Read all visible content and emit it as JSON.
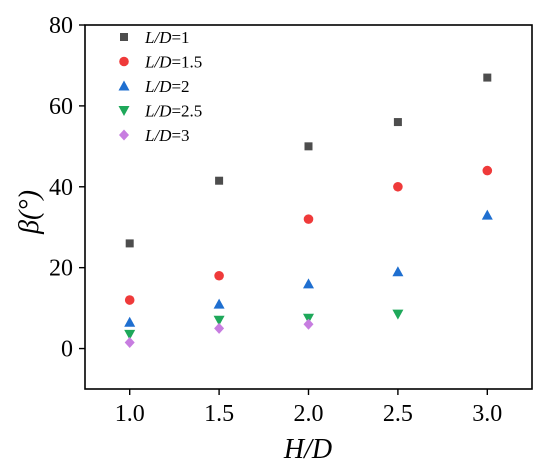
{
  "chart_data": {
    "type": "scatter",
    "xlabel": "H/D",
    "ylabel": "β(°)",
    "xlim": [
      0.75,
      3.25
    ],
    "ylim": [
      -10,
      80
    ],
    "xticks": [
      "1.0",
      "1.5",
      "2.0",
      "2.5",
      "3.0"
    ],
    "yticks": [
      "0",
      "20",
      "40",
      "60",
      "80"
    ],
    "legend_position": "top-left",
    "grid": false,
    "series": [
      {
        "name": "L/D=1",
        "marker": "square",
        "color": "#4d4d4d",
        "x": [
          1.0,
          1.5,
          2.0,
          2.5,
          3.0
        ],
        "y": [
          26,
          41.5,
          50,
          56,
          67
        ]
      },
      {
        "name": "L/D=1.5",
        "marker": "circle",
        "color": "#ef3a3a",
        "x": [
          1.0,
          1.5,
          2.0,
          2.5,
          3.0
        ],
        "y": [
          12,
          18,
          32,
          40,
          44
        ]
      },
      {
        "name": "L/D=2",
        "marker": "triangle-up",
        "color": "#1f6fd0",
        "x": [
          1.0,
          1.5,
          2.0,
          2.5,
          3.0
        ],
        "y": [
          6.5,
          11,
          16,
          19,
          33
        ]
      },
      {
        "name": "L/D=2.5",
        "marker": "triangle-down",
        "color": "#1ea85a",
        "x": [
          1.0,
          1.5,
          2.0,
          2.5
        ],
        "y": [
          3.5,
          7,
          7.5,
          8.5
        ]
      },
      {
        "name": "L/D=3",
        "marker": "diamond",
        "color": "#c77de0",
        "x": [
          1.0,
          1.5,
          2.0
        ],
        "y": [
          1.5,
          5,
          6
        ]
      }
    ]
  }
}
